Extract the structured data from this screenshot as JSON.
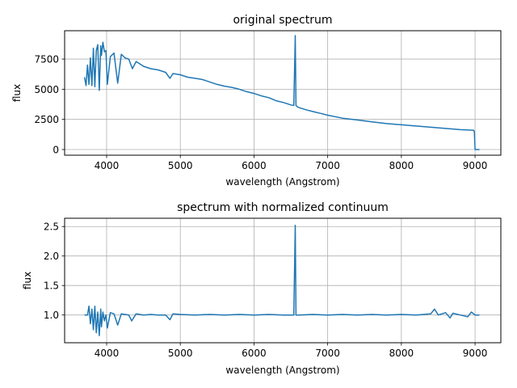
{
  "chart_data": [
    {
      "type": "line",
      "title": "original spectrum",
      "xlabel": "wavelength (Angstrom)",
      "ylabel": "flux",
      "xlim": [
        3430,
        9350
      ],
      "ylim": [
        -470,
        9850
      ],
      "xticks": [
        4000,
        5000,
        6000,
        7000,
        8000,
        9000
      ],
      "xticklabels": [
        "4000",
        "5000",
        "6000",
        "7000",
        "8000",
        "9000"
      ],
      "yticks": [
        0,
        2500,
        5000,
        7500
      ],
      "yticklabels": [
        "0",
        "2500",
        "5000",
        "7500"
      ],
      "grid": true,
      "legend": "none",
      "series": [
        {
          "color": "#1f77b4",
          "x": [
            3700,
            3720,
            3740,
            3760,
            3780,
            3800,
            3820,
            3840,
            3860,
            3880,
            3900,
            3920,
            3930,
            3950,
            3970,
            3990,
            4010,
            4050,
            4100,
            4150,
            4200,
            4250,
            4300,
            4350,
            4400,
            4450,
            4500,
            4600,
            4700,
            4800,
            4860,
            4900,
            5000,
            5100,
            5200,
            5300,
            5400,
            5500,
            5600,
            5700,
            5800,
            5900,
            6000,
            6100,
            6200,
            6300,
            6400,
            6500,
            6540,
            6560,
            6570,
            6580,
            6600,
            6700,
            6800,
            6900,
            7000,
            7200,
            7400,
            7600,
            7800,
            8000,
            8200,
            8400,
            8600,
            8800,
            8980,
            8990,
            9000,
            9060
          ],
          "y": [
            6000,
            5300,
            7000,
            5400,
            7600,
            5300,
            8400,
            5200,
            8200,
            8700,
            4900,
            8600,
            7800,
            8900,
            8100,
            8200,
            5400,
            7700,
            8000,
            5500,
            7900,
            7600,
            7500,
            6700,
            7300,
            7100,
            6900,
            6700,
            6600,
            6400,
            5900,
            6300,
            6200,
            6000,
            5900,
            5800,
            5600,
            5400,
            5250,
            5150,
            5000,
            4800,
            4650,
            4450,
            4300,
            4050,
            3900,
            3700,
            3650,
            9450,
            3650,
            3600,
            3500,
            3300,
            3150,
            3000,
            2850,
            2600,
            2450,
            2300,
            2150,
            2050,
            1950,
            1850,
            1750,
            1650,
            1600,
            1500,
            0,
            0
          ]
        }
      ]
    },
    {
      "type": "line",
      "title": "spectrum with normalized continuum",
      "xlabel": "wavelength (Angstrom)",
      "ylabel": "flux",
      "xlim": [
        3430,
        9350
      ],
      "ylim": [
        0.53,
        2.64
      ],
      "xticks": [
        4000,
        5000,
        6000,
        7000,
        8000,
        9000
      ],
      "xticklabels": [
        "4000",
        "5000",
        "6000",
        "7000",
        "8000",
        "9000"
      ],
      "yticks": [
        1.0,
        1.5,
        2.0,
        2.5
      ],
      "yticklabels": [
        "1.0",
        "1.5",
        "2.0",
        "2.5"
      ],
      "grid": true,
      "legend": "none",
      "series": [
        {
          "color": "#1f77b4",
          "x": [
            3700,
            3740,
            3760,
            3780,
            3800,
            3820,
            3840,
            3860,
            3880,
            3900,
            3920,
            3930,
            3950,
            3970,
            3990,
            4010,
            4050,
            4100,
            4150,
            4200,
            4300,
            4340,
            4400,
            4500,
            4600,
            4700,
            4800,
            4860,
            4900,
            5000,
            5200,
            5400,
            5600,
            5800,
            6000,
            6200,
            6400,
            6540,
            6560,
            6570,
            6600,
            6800,
            7000,
            7200,
            7400,
            7600,
            7800,
            8000,
            8200,
            8400,
            8450,
            8500,
            8600,
            8660,
            8700,
            8800,
            8900,
            8950,
            9000,
            9060
          ],
          "y": [
            1.0,
            1.0,
            1.15,
            0.85,
            1.1,
            0.75,
            1.15,
            0.7,
            1.05,
            0.65,
            1.1,
            0.8,
            1.05,
            0.9,
            1.0,
            0.78,
            1.04,
            1.02,
            0.83,
            1.02,
            1.0,
            0.9,
            1.02,
            1.0,
            1.01,
            1.0,
            1.0,
            0.92,
            1.02,
            1.01,
            1.0,
            1.01,
            1.0,
            1.01,
            1.0,
            1.01,
            1.0,
            1.0,
            2.52,
            1.0,
            1.0,
            1.01,
            1.0,
            1.01,
            1.0,
            1.01,
            1.0,
            1.01,
            1.0,
            1.02,
            1.1,
            1.0,
            1.04,
            0.95,
            1.03,
            1.0,
            0.97,
            1.05,
            1.0,
            1.0
          ]
        }
      ]
    }
  ]
}
